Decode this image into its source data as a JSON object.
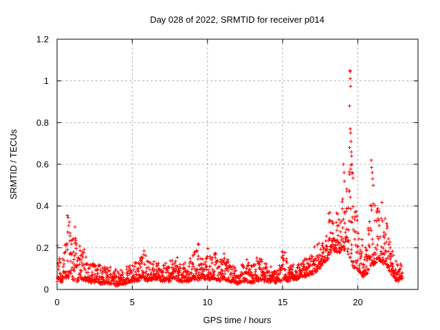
{
  "window": {
    "title": "Day 028 of 2022, SRMTID for receiver p014"
  },
  "colors": {
    "points": "#ff0000",
    "grid": "#b0b0b0",
    "border": "#000000",
    "background": "#ffffff",
    "text": "#000000"
  },
  "chart_data": {
    "type": "scatter",
    "marker": "plus",
    "title": "Day 028 of 2022, SRMTID for receiver p014",
    "xlabel": "GPS time / hours",
    "ylabel": "SRMTID / TECUs",
    "xlim": [
      0,
      24
    ],
    "ylim": [
      0,
      1.2
    ],
    "xticks": [
      0,
      5,
      10,
      15,
      20
    ],
    "xtick_labels": [
      "0",
      "5",
      "10",
      "15",
      "20"
    ],
    "yticks": [
      0,
      0.2,
      0.4,
      0.6,
      0.8,
      1.0,
      1.2
    ],
    "ytick_labels": [
      "0",
      "0.2",
      "0.4",
      "0.6",
      "0.8",
      "1",
      "1.2"
    ],
    "grid": "dashed",
    "legend": "none",
    "t_start": 0.0,
    "t_end": 22.97,
    "sample_interval_hours": 0.0125,
    "density_exponent": 2.3,
    "seed": 20220028,
    "envelope": [
      [
        0.0,
        0.04,
        0.27
      ],
      [
        0.15,
        0.04,
        0.2
      ],
      [
        0.35,
        0.04,
        0.15
      ],
      [
        0.55,
        0.05,
        0.24
      ],
      [
        0.7,
        0.06,
        0.37
      ],
      [
        0.85,
        0.05,
        0.33
      ],
      [
        1.0,
        0.05,
        0.27
      ],
      [
        1.2,
        0.04,
        0.3
      ],
      [
        1.35,
        0.04,
        0.22
      ],
      [
        1.55,
        0.05,
        0.23
      ],
      [
        1.75,
        0.04,
        0.21
      ],
      [
        2.0,
        0.04,
        0.16
      ],
      [
        2.3,
        0.03,
        0.13
      ],
      [
        2.6,
        0.04,
        0.14
      ],
      [
        2.9,
        0.03,
        0.13
      ],
      [
        3.2,
        0.03,
        0.11
      ],
      [
        3.5,
        0.03,
        0.12
      ],
      [
        3.8,
        0.02,
        0.1
      ],
      [
        4.1,
        0.02,
        0.09
      ],
      [
        4.4,
        0.03,
        0.09
      ],
      [
        4.7,
        0.03,
        0.11
      ],
      [
        5.0,
        0.04,
        0.12
      ],
      [
        5.3,
        0.04,
        0.13
      ],
      [
        5.6,
        0.05,
        0.16
      ],
      [
        5.8,
        0.05,
        0.22
      ],
      [
        6.0,
        0.04,
        0.15
      ],
      [
        6.3,
        0.05,
        0.14
      ],
      [
        6.6,
        0.05,
        0.14
      ],
      [
        6.9,
        0.04,
        0.12
      ],
      [
        7.2,
        0.04,
        0.12
      ],
      [
        7.5,
        0.04,
        0.13
      ],
      [
        7.8,
        0.05,
        0.15
      ],
      [
        8.1,
        0.04,
        0.16
      ],
      [
        8.4,
        0.04,
        0.13
      ],
      [
        8.7,
        0.04,
        0.15
      ],
      [
        9.0,
        0.05,
        0.17
      ],
      [
        9.35,
        0.05,
        0.25
      ],
      [
        9.55,
        0.05,
        0.2
      ],
      [
        9.8,
        0.05,
        0.16
      ],
      [
        10.05,
        0.05,
        0.22
      ],
      [
        10.3,
        0.05,
        0.18
      ],
      [
        10.55,
        0.05,
        0.17
      ],
      [
        10.8,
        0.04,
        0.13
      ],
      [
        11.1,
        0.05,
        0.19
      ],
      [
        11.4,
        0.04,
        0.14
      ],
      [
        11.7,
        0.04,
        0.12
      ],
      [
        12.0,
        0.03,
        0.1
      ],
      [
        12.3,
        0.04,
        0.12
      ],
      [
        12.6,
        0.04,
        0.15
      ],
      [
        12.9,
        0.03,
        0.11
      ],
      [
        13.2,
        0.04,
        0.15
      ],
      [
        13.5,
        0.04,
        0.16
      ],
      [
        13.8,
        0.04,
        0.15
      ],
      [
        14.1,
        0.04,
        0.13
      ],
      [
        14.45,
        0.03,
        0.09
      ],
      [
        14.75,
        0.04,
        0.11
      ],
      [
        15.05,
        0.05,
        0.23
      ],
      [
        15.3,
        0.04,
        0.13
      ],
      [
        15.6,
        0.05,
        0.12
      ],
      [
        15.9,
        0.05,
        0.13
      ],
      [
        16.2,
        0.06,
        0.15
      ],
      [
        16.5,
        0.06,
        0.16
      ],
      [
        16.8,
        0.07,
        0.17
      ],
      [
        17.1,
        0.08,
        0.2
      ],
      [
        17.4,
        0.1,
        0.24
      ],
      [
        17.7,
        0.12,
        0.28
      ],
      [
        18.0,
        0.15,
        0.35
      ],
      [
        18.3,
        0.2,
        0.44
      ],
      [
        18.55,
        0.18,
        0.38
      ],
      [
        18.8,
        0.18,
        0.36
      ],
      [
        19.0,
        0.2,
        0.48
      ],
      [
        19.2,
        0.18,
        0.42
      ],
      [
        19.4,
        0.16,
        0.6
      ],
      [
        19.5,
        0.15,
        0.72
      ],
      [
        19.62,
        0.12,
        0.62
      ],
      [
        19.75,
        0.1,
        0.45
      ],
      [
        19.95,
        0.1,
        0.36
      ],
      [
        20.15,
        0.08,
        0.3
      ],
      [
        20.4,
        0.06,
        0.2
      ],
      [
        20.65,
        0.08,
        0.28
      ],
      [
        20.9,
        0.12,
        0.46
      ],
      [
        21.1,
        0.12,
        0.42
      ],
      [
        21.35,
        0.14,
        0.4
      ],
      [
        21.6,
        0.13,
        0.42
      ],
      [
        21.85,
        0.12,
        0.34
      ],
      [
        22.05,
        0.1,
        0.28
      ],
      [
        22.25,
        0.07,
        0.22
      ],
      [
        22.45,
        0.05,
        0.15
      ],
      [
        22.7,
        0.04,
        0.13
      ],
      [
        22.95,
        0.05,
        0.12
      ]
    ],
    "outliers": [
      [
        0.68,
        0.355
      ],
      [
        0.72,
        0.345
      ],
      [
        1.18,
        0.3
      ],
      [
        19.46,
        0.88
      ],
      [
        19.48,
        1.05
      ],
      [
        19.5,
        1.045
      ],
      [
        19.5,
        1.01
      ],
      [
        19.51,
        0.975
      ],
      [
        19.49,
        0.77
      ],
      [
        19.53,
        0.75
      ],
      [
        19.55,
        0.71
      ],
      [
        19.44,
        0.68
      ],
      [
        19.56,
        0.66
      ],
      [
        19.58,
        0.64
      ],
      [
        19.6,
        0.6
      ],
      [
        19.62,
        0.56
      ],
      [
        19.05,
        0.6
      ],
      [
        19.08,
        0.56
      ],
      [
        19.1,
        0.52
      ],
      [
        20.88,
        0.62
      ],
      [
        20.92,
        0.585
      ],
      [
        20.95,
        0.56
      ],
      [
        20.98,
        0.53
      ],
      [
        21.02,
        0.5
      ]
    ]
  }
}
